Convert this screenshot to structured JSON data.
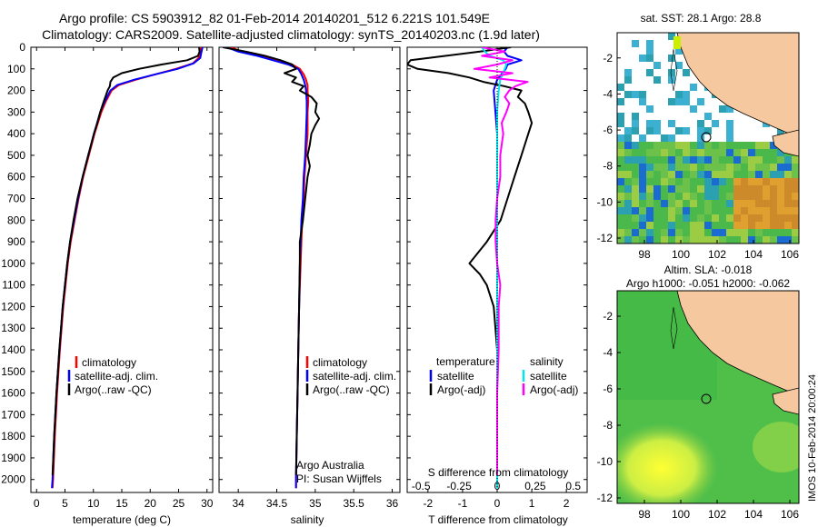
{
  "figure": {
    "title_line1": "Argo profile: CS 5903912_82 01-Feb-2014 20140201_512 6.221S 101.549E",
    "title_line2": "Climatology: CARS2009. Satellite-adjusted climatology: synTS_20140203.nc (1.9d later)",
    "side_stamp": "IMOS 10-Feb-2014 20:00:24"
  },
  "colors": {
    "climatology": "#ff0000",
    "satellite": "#0000ff",
    "argo": "#000000",
    "sal_satellite": "#00e5ee",
    "sal_argo": "#ff00ff",
    "land": "#f5c8a0",
    "ocean_green": "#44bb44"
  },
  "depth_axis": {
    "ticks": [
      "0",
      "100",
      "200",
      "300",
      "400",
      "500",
      "600",
      "700",
      "800",
      "900",
      "1000",
      "1100",
      "1200",
      "1300",
      "1400",
      "1500",
      "1600",
      "1700",
      "1800",
      "1900",
      "2000"
    ]
  },
  "chart_data": [
    {
      "type": "line",
      "panel": "temperature",
      "xlabel": "temperature (deg C)",
      "xlim": [
        -1,
        31
      ],
      "ylim": [
        0,
        2060
      ],
      "y_inverted": true,
      "xticks": [
        "0",
        "5",
        "10",
        "15",
        "20",
        "25",
        "30"
      ],
      "legend": [
        "climatology",
        "satellite-adj. clim.",
        "Argo(..raw -QC)"
      ],
      "series": [
        {
          "name": "climatology",
          "depth": [
            0,
            25,
            50,
            75,
            100,
            125,
            150,
            175,
            200,
            250,
            300,
            400,
            500,
            600,
            700,
            800,
            900,
            1000,
            1200,
            1400,
            1600,
            1800,
            2000,
            2040
          ],
          "values": [
            28.9,
            28.8,
            28.5,
            27.5,
            24.5,
            21,
            17.5,
            14.5,
            13.2,
            12.2,
            11.4,
            10.2,
            9.2,
            8.2,
            7.4,
            6.7,
            6.0,
            5.5,
            4.7,
            4.1,
            3.6,
            3.2,
            2.9,
            2.8
          ]
        },
        {
          "name": "satellite-adj. clim.",
          "depth": [
            0,
            25,
            50,
            75,
            100,
            125,
            150,
            175,
            200,
            250,
            300,
            400,
            500,
            600,
            700,
            800,
            900,
            1000,
            1200,
            1400,
            1600,
            1800,
            2000,
            2040
          ],
          "values": [
            29.2,
            29,
            28.8,
            27.6,
            24.8,
            21,
            17.2,
            14.2,
            13,
            12,
            11.2,
            10.1,
            9.1,
            8.1,
            7.3,
            6.6,
            5.9,
            5.4,
            4.6,
            4.0,
            3.5,
            3.1,
            2.8,
            2.7
          ]
        },
        {
          "name": "Argo(..raw -QC)",
          "depth": [
            0,
            20,
            40,
            60,
            80,
            100,
            120,
            140,
            160,
            180,
            200,
            230,
            260,
            300,
            350,
            400,
            450,
            500,
            600,
            700,
            800,
            900,
            1000,
            1200,
            1400,
            1600,
            1800,
            1980
          ],
          "values": [
            28.6,
            28.7,
            28.4,
            26.5,
            22,
            18,
            15,
            13.5,
            13,
            12.9,
            12.5,
            12.1,
            11.7,
            11.2,
            10.7,
            10.1,
            9.6,
            9.1,
            8.1,
            7.2,
            6.5,
            5.9,
            5.4,
            4.6,
            4.0,
            3.5,
            3.1,
            2.8
          ]
        }
      ]
    },
    {
      "type": "line",
      "panel": "salinity",
      "xlabel": "salinity",
      "xlim": [
        33.75,
        36.1
      ],
      "ylim": [
        0,
        2060
      ],
      "y_inverted": true,
      "xticks": [
        "34",
        "34.5",
        "35",
        "35.5",
        "36"
      ],
      "legend": [
        "climatology",
        "satellite-adj. clim.",
        "Argo(..raw -QC)"
      ],
      "annotation": [
        "Argo Australia",
        "PI: Susan Wijffels"
      ],
      "series": [
        {
          "name": "climatology",
          "depth": [
            0,
            20,
            40,
            60,
            80,
            100,
            125,
            150,
            175,
            200,
            250,
            300,
            400,
            500,
            600,
            700,
            800,
            900,
            1000,
            1200,
            1400,
            1600,
            1800,
            2000,
            2040
          ],
          "values": [
            33.9,
            34.05,
            34.3,
            34.5,
            34.7,
            34.8,
            34.85,
            34.88,
            34.9,
            34.9,
            34.91,
            34.9,
            34.9,
            34.88,
            34.86,
            34.85,
            34.83,
            34.82,
            34.81,
            34.79,
            34.78,
            34.77,
            34.76,
            34.75,
            34.75
          ]
        },
        {
          "name": "satellite-adj. clim.",
          "depth": [
            0,
            20,
            40,
            60,
            80,
            100,
            125,
            150,
            175,
            200,
            250,
            300,
            400,
            500,
            600,
            700,
            800,
            900,
            1000,
            1200,
            1400,
            1600,
            1800,
            2000,
            2040
          ],
          "values": [
            33.85,
            34.0,
            34.25,
            34.45,
            34.65,
            34.78,
            34.82,
            34.85,
            34.87,
            34.88,
            34.89,
            34.89,
            34.88,
            34.87,
            34.85,
            34.84,
            34.82,
            34.81,
            34.8,
            34.79,
            34.78,
            34.77,
            34.76,
            34.75,
            34.75
          ]
        },
        {
          "name": "Argo(..raw -QC)",
          "depth": [
            0,
            20,
            40,
            60,
            80,
            100,
            120,
            140,
            160,
            180,
            200,
            230,
            260,
            300,
            330,
            360,
            400,
            450,
            500,
            550,
            600,
            700,
            800,
            900,
            1000,
            1200,
            1400,
            1600,
            1800,
            1980
          ],
          "values": [
            33.8,
            34.1,
            34.35,
            34.55,
            34.7,
            34.75,
            34.6,
            34.75,
            34.7,
            34.85,
            34.8,
            34.95,
            35.02,
            35.0,
            35.05,
            35.0,
            34.95,
            34.93,
            34.9,
            34.93,
            34.9,
            34.87,
            34.84,
            34.8,
            34.8,
            34.79,
            34.78,
            34.77,
            34.76,
            34.75
          ]
        }
      ]
    },
    {
      "type": "line",
      "panel": "difference",
      "xlabel": "T difference from climatology",
      "xlabel_top": "S difference from climatology",
      "xlim": [
        -2.6,
        2.6
      ],
      "ylim": [
        0,
        2060
      ],
      "y_inverted": true,
      "xticks": [
        "-2",
        "-1",
        "0",
        "1",
        "2"
      ],
      "xticks_s": [
        "-0.5",
        "-0.25",
        "0",
        "0.25",
        "0.5"
      ],
      "legend_temperature": {
        "title": "temperature",
        "items": [
          "satellite",
          "Argo(-adj)"
        ]
      },
      "legend_salinity": {
        "title": "salinity",
        "items": [
          "satellite",
          "Argo(-adj)"
        ]
      },
      "series": [
        {
          "name": "T satellite",
          "depth": [
            0,
            20,
            40,
            60,
            80,
            100,
            150,
            200,
            300,
            400,
            600,
            800,
            1000,
            1400,
            1800,
            2040
          ],
          "values": [
            0.3,
            0.2,
            0.3,
            0.7,
            0.3,
            0.25,
            0,
            -0.1,
            -0.05,
            0,
            0,
            0,
            0,
            0,
            0,
            0
          ]
        },
        {
          "name": "T Argo(-adj)",
          "depth": [
            0,
            20,
            40,
            60,
            80,
            100,
            120,
            140,
            160,
            180,
            200,
            230,
            260,
            300,
            350,
            400,
            450,
            500,
            600,
            700,
            800,
            900,
            1000,
            1050,
            1100,
            1200,
            1400,
            1600,
            1800,
            1980
          ],
          "values": [
            0.4,
            -0.5,
            -1.5,
            -2.5,
            -2.6,
            -2.3,
            -1.4,
            -0.8,
            -0.4,
            0.2,
            0.7,
            0.6,
            0.8,
            0.9,
            1.0,
            0.9,
            0.8,
            0.7,
            0.5,
            0.3,
            0.1,
            -0.3,
            -0.8,
            -0.5,
            -0.3,
            -0.1,
            0,
            0,
            0,
            0
          ]
        },
        {
          "name": "S satellite",
          "depth": [
            0,
            20,
            40,
            60,
            80,
            100,
            150,
            200,
            300,
            400,
            600,
            800,
            1000,
            1400,
            1800,
            2040
          ],
          "values": [
            -0.1,
            -0.08,
            -0.05,
            0.04,
            0.06,
            0.05,
            0.02,
            0.01,
            0,
            0,
            0,
            0,
            0,
            0,
            0,
            0
          ]
        },
        {
          "name": "S Argo(-adj)",
          "depth": [
            0,
            20,
            40,
            60,
            80,
            100,
            120,
            140,
            160,
            180,
            200,
            230,
            260,
            300,
            350,
            400,
            450,
            500,
            600,
            700,
            800,
            900,
            1000,
            1100,
            1200,
            1400,
            1600,
            1800,
            1980
          ],
          "values": [
            -0.1,
            0.05,
            -0.1,
            0.1,
            0.0,
            -0.15,
            0.1,
            -0.05,
            0.2,
            0.12,
            0.08,
            0.05,
            0.08,
            0.06,
            0.03,
            0.04,
            0.03,
            0.02,
            0.02,
            0.0,
            -0.01,
            -0.01,
            0.0,
            0.02,
            0.01,
            0.01,
            0.0,
            0.0,
            0.0
          ]
        }
      ]
    },
    {
      "type": "heatmap",
      "panel": "sst_map",
      "title": "sat. SST: 28.1  Argo: 28.8",
      "xticks": [
        "98",
        "100",
        "102",
        "104",
        "106"
      ],
      "yticks": [
        "-2",
        "-4",
        "-6",
        "-8",
        "-10",
        "-12"
      ],
      "xlim": [
        96.5,
        106.5
      ],
      "ylim": [
        -12.3,
        -0.6
      ],
      "marker": {
        "lon": 101.55,
        "lat": -6.22
      }
    },
    {
      "type": "heatmap",
      "panel": "sla_map",
      "title_line1": "Altim. SLA: -0.018",
      "title_line2": "Argo h1000: -0.051  h2000: -0.062",
      "xticks": [
        "98",
        "100",
        "102",
        "104",
        "106"
      ],
      "yticks": [
        "-2",
        "-4",
        "-6",
        "-8",
        "-10",
        "-12"
      ],
      "xlim": [
        96.5,
        106.5
      ],
      "ylim": [
        -12.3,
        -0.6
      ],
      "marker": {
        "lon": 101.55,
        "lat": -6.22
      }
    }
  ]
}
